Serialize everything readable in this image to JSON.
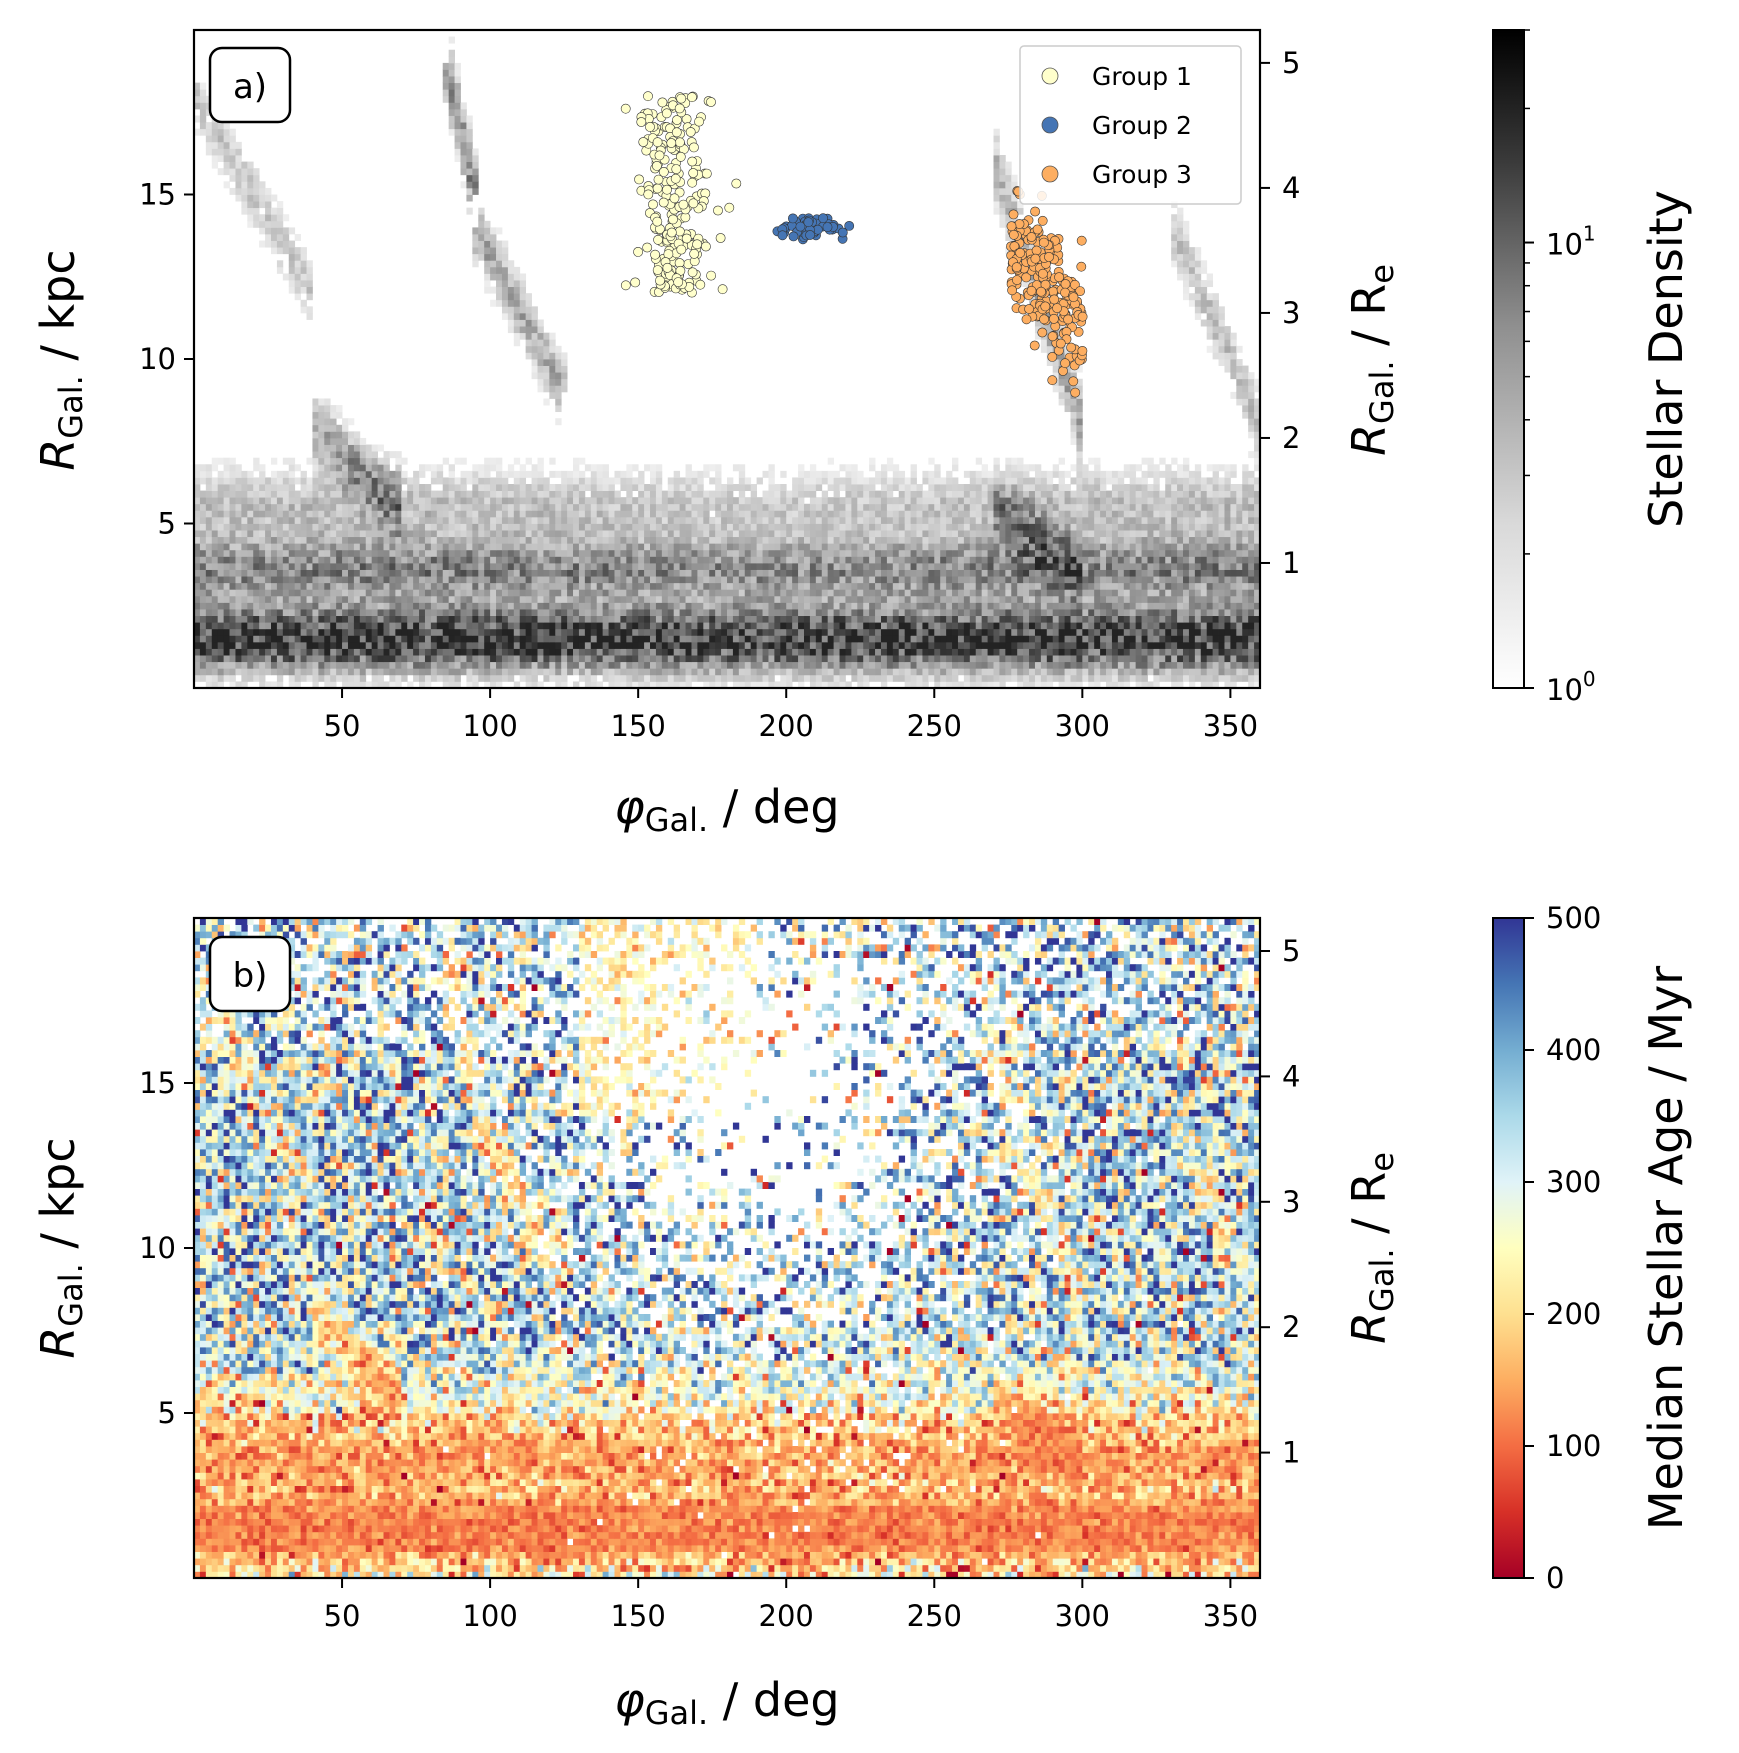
{
  "chart_data": [
    {
      "type": "heatmap",
      "panel_label": "a)",
      "x": {
        "label_sym": "φ",
        "label_sub": "Gal.",
        "label_unit": " / deg",
        "lim": [
          0,
          360
        ],
        "ticks": [
          "50",
          "100",
          "150",
          "200",
          "250",
          "300",
          "350"
        ],
        "tick_values": [
          50,
          100,
          150,
          200,
          250,
          300,
          350
        ]
      },
      "y": {
        "label_sym": "R",
        "label_sub": "Gal.",
        "label_unit": " / kpc",
        "lim": [
          0,
          20
        ],
        "ticks": [
          "5",
          "10",
          "15"
        ],
        "tick_values": [
          5,
          10,
          15
        ]
      },
      "y2": {
        "label_sym": "R",
        "label_sub": "Gal.",
        "label_unit_main": " / R",
        "label_unit_sub": "e",
        "ticks": [
          "1",
          "2",
          "3",
          "4",
          "5"
        ],
        "tick_values_kpc": [
          3.8,
          7.6,
          11.4,
          15.2,
          19.0
        ]
      },
      "colorbar": {
        "label": "Stellar Density",
        "scale": "log",
        "lim": [
          1,
          30
        ],
        "ticks": [
          "10",
          "10"
        ],
        "tick_exponents": [
          "0",
          "1"
        ],
        "tick_values": [
          1,
          10
        ],
        "colormap": "greys"
      },
      "series": [
        {
          "name": "Group 1",
          "color": "#ffffcc",
          "center": [
            163,
            15.0
          ],
          "spread": [
            10,
            2.3
          ],
          "count": 230
        },
        {
          "name": "Group 2",
          "color": "#4575b4",
          "center": [
            208,
            14.0
          ],
          "spread": [
            10,
            0.35
          ],
          "count": 70
        },
        {
          "name": "Group 3",
          "color": "#fdae61",
          "center": [
            288,
            10.5
          ],
          "spread": [
            11,
            1.2
          ],
          "count": 230
        }
      ],
      "legend": {
        "position": "top-right",
        "entries": [
          "Group 1",
          "Group 2",
          "Group 3"
        ]
      }
    },
    {
      "type": "heatmap",
      "panel_label": "b)",
      "x": {
        "label_sym": "φ",
        "label_sub": "Gal.",
        "label_unit": " / deg",
        "lim": [
          0,
          360
        ],
        "ticks": [
          "50",
          "100",
          "150",
          "200",
          "250",
          "300",
          "350"
        ],
        "tick_values": [
          50,
          100,
          150,
          200,
          250,
          300,
          350
        ]
      },
      "y": {
        "label_sym": "R",
        "label_sub": "Gal.",
        "label_unit": " / kpc",
        "lim": [
          0,
          20
        ],
        "ticks": [
          "5",
          "10",
          "15"
        ],
        "tick_values": [
          5,
          10,
          15
        ]
      },
      "y2": {
        "label_sym": "R",
        "label_sub": "Gal.",
        "label_unit_main": " / R",
        "label_unit_sub": "e",
        "ticks": [
          "1",
          "2",
          "3",
          "4",
          "5"
        ],
        "tick_values_kpc": [
          3.8,
          7.6,
          11.4,
          15.2,
          19.0
        ]
      },
      "colorbar": {
        "label": "Median Stellar Age / Myr",
        "scale": "linear",
        "lim": [
          0,
          500
        ],
        "ticks": [
          "0",
          "100",
          "200",
          "300",
          "400",
          "500"
        ],
        "tick_values": [
          0,
          100,
          200,
          300,
          400,
          500
        ],
        "colormap": "RdYlBu"
      }
    }
  ]
}
